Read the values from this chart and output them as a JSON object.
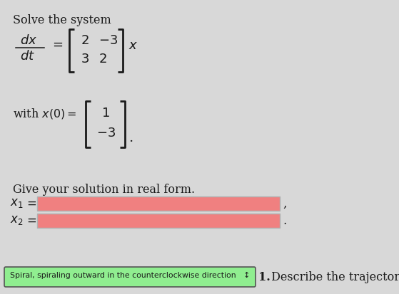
{
  "bg_color": "#d8d8d8",
  "title_text": "Solve the system",
  "solution_label": "Give your solution in real form.",
  "input_color": "#f08080",
  "input_border": "#b0b0b0",
  "dropdown_text": "Spiral, spiraling outward in the counterclockwise direction   ↕",
  "dropdown_bg": "#90ee90",
  "dropdown_border": "#555555",
  "trajectory_label": "1.",
  "trajectory_text": " Describe the trajectory.",
  "dark_text": "#1a1a1a"
}
